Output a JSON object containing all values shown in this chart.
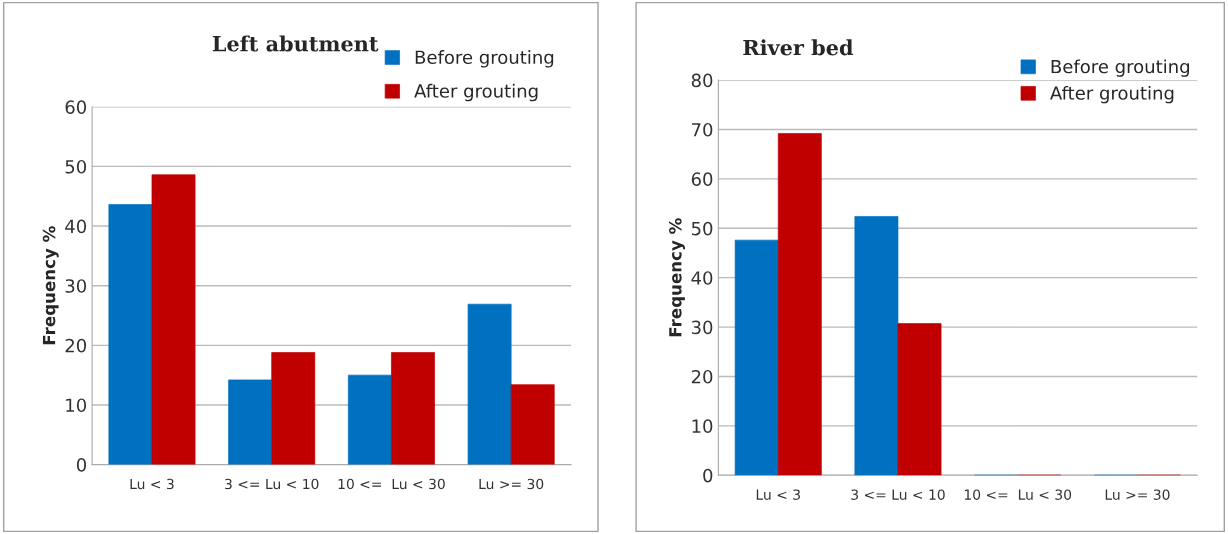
{
  "chart_data": [
    {
      "type": "bar",
      "title": "Left abutment",
      "ylabel": "Frequency %",
      "categories": [
        "Lu < 3",
        "3 <= Lu < 10",
        "10 <=  Lu < 30",
        "Lu >= 30"
      ],
      "ylim": [
        0,
        60
      ],
      "yticks": [
        0,
        10,
        20,
        30,
        40,
        50,
        60
      ],
      "grid": "y",
      "legend": "top right",
      "series": [
        {
          "name": "Before grouting",
          "color": "#0070c0",
          "values": [
            43.6,
            14.2,
            15.0,
            26.9
          ]
        },
        {
          "name": "After grouting",
          "color": "#c00000",
          "values": [
            48.6,
            18.8,
            18.8,
            13.4
          ]
        }
      ]
    },
    {
      "type": "bar",
      "title": "River bed",
      "ylabel": "Frequency %",
      "categories": [
        "Lu < 3",
        "3 <= Lu < 10",
        "10 <=  Lu < 30",
        "Lu >= 30"
      ],
      "ylim": [
        0,
        80
      ],
      "yticks": [
        0,
        10,
        20,
        30,
        40,
        50,
        60,
        70,
        80
      ],
      "grid": "y",
      "legend": "top right",
      "series": [
        {
          "name": "Before grouting",
          "color": "#0070c0",
          "values": [
            47.6,
            52.4,
            0,
            0
          ]
        },
        {
          "name": "After grouting",
          "color": "#c00000",
          "values": [
            69.2,
            30.7,
            0,
            0
          ]
        }
      ]
    }
  ]
}
